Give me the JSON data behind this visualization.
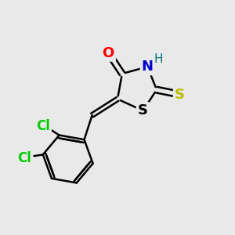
{
  "background_color": "#e9e9e9",
  "bond_color": "#000000",
  "bond_width": 1.8,
  "figsize": [
    3.0,
    3.0
  ],
  "dpi": 100,
  "xlim": [
    0,
    10
  ],
  "ylim": [
    0,
    10
  ],
  "colors": {
    "O": "#ff0000",
    "N": "#0000cc",
    "H": "#007777",
    "S_thioxo": "#bbbb00",
    "S_ring": "#000000",
    "Cl": "#00cc00",
    "bond": "#000000"
  }
}
